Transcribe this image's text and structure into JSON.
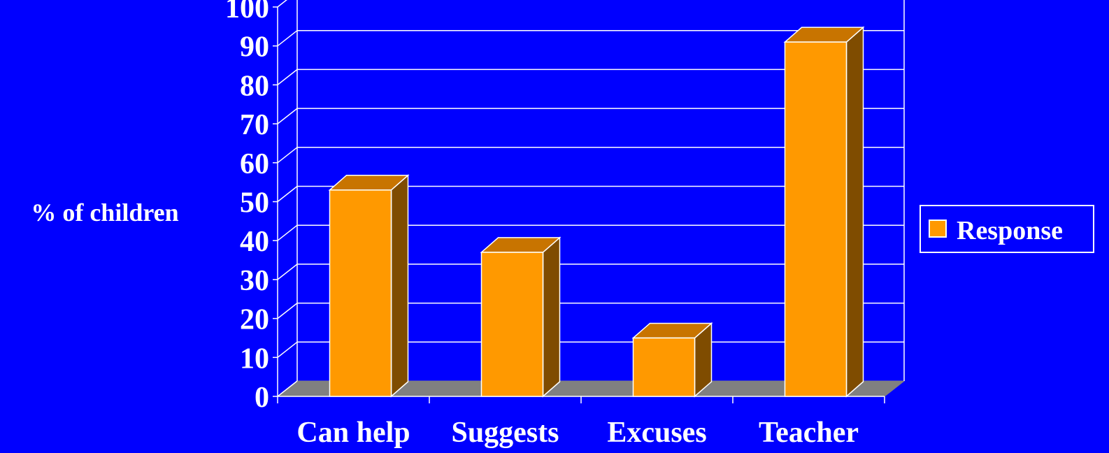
{
  "chart_data": {
    "type": "bar",
    "title": "",
    "ylabel": "% of children",
    "xlabel": "",
    "categories": [
      "Can help",
      "Suggests",
      "Excuses",
      "Teacher"
    ],
    "series": [
      {
        "name": "Response",
        "values": [
          53,
          37,
          15,
          91
        ]
      }
    ],
    "ylim": [
      0,
      100
    ],
    "ytick_step": 10,
    "grid": true,
    "legend": "right",
    "three_d": true,
    "colors": {
      "background": "#0000ff",
      "bar_front": "#ff9900",
      "bar_top": "#c87400",
      "bar_side": "#7f4c00",
      "floor": "#808080",
      "grid": "#ffffff",
      "text": "#ffffff"
    }
  }
}
